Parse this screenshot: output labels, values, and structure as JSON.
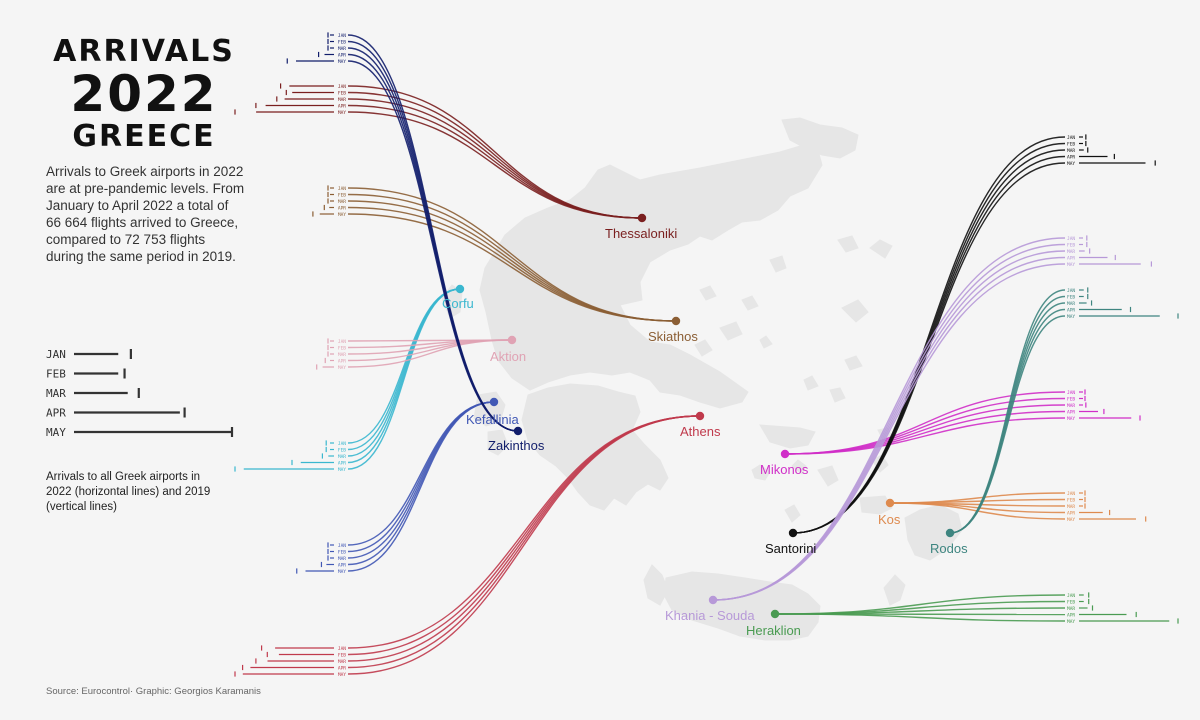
{
  "title": {
    "line1": "ARRIVALS",
    "line2": "2022",
    "line3": "GREECE"
  },
  "intro": "Arrivals to Greek airports in 2022 are at pre-pandemic levels. From January to April 2022 a total of 66 664 flights arrived to Greece, compared to 72 753 flights during the same period in 2019.",
  "legend": {
    "months": [
      "JAN",
      "FEB",
      "MAR",
      "APR",
      "MAY"
    ],
    "values_2022": [
      0.28,
      0.28,
      0.34,
      0.67,
      1.0
    ],
    "values_2019": [
      0.36,
      0.32,
      0.41,
      0.7,
      1.0
    ],
    "note": "Arrivals to all Greek airports in 2022 (horizontal lines) and 2019 (vertical lines)"
  },
  "source": "Source: Eurocontrol· Graphic: Georgios Karamanis",
  "map": {
    "land_color": "#e6e6e6",
    "background": "#f5f5f5"
  },
  "chart_data": {
    "type": "line",
    "series_note": "Relative arrivals per month by airport (share of the airport's largest value); horizontal = 2022, vertical tick = 2019",
    "months": [
      "JAN",
      "FEB",
      "MAR",
      "APR",
      "MAY"
    ],
    "airports": [
      {
        "name": "Thessaloniki",
        "color": "#7a1f1f",
        "values_2022": [
          0.47,
          0.44,
          0.52,
          0.72,
          0.82
        ],
        "values_2019": [
          0.52,
          0.46,
          0.56,
          0.78,
          1.0
        ]
      },
      {
        "name": "Skiathos",
        "color": "#8b5e34",
        "values_2022": [
          0.01,
          0.01,
          0.02,
          0.05,
          0.15
        ],
        "values_2019": [
          0.01,
          0.01,
          0.02,
          0.06,
          0.18
        ]
      },
      {
        "name": "Corfu",
        "color": "#3ab7cf",
        "values_2022": [
          0.03,
          0.04,
          0.06,
          0.35,
          0.95
        ],
        "values_2019": [
          0.04,
          0.04,
          0.08,
          0.4,
          1.0
        ]
      },
      {
        "name": "Aktion",
        "color": "#e0a3b4",
        "values_2022": [
          0.01,
          0.01,
          0.02,
          0.04,
          0.12
        ],
        "values_2019": [
          0.01,
          0.01,
          0.01,
          0.05,
          0.14
        ]
      },
      {
        "name": "Kefallinia",
        "color": "#4158b5",
        "values_2022": [
          0.01,
          0.01,
          0.02,
          0.08,
          0.3
        ],
        "values_2019": [
          0.01,
          0.01,
          0.02,
          0.09,
          0.35
        ]
      },
      {
        "name": "Zakinthos",
        "color": "#111d6b",
        "values_2022": [
          0.01,
          0.01,
          0.02,
          0.1,
          0.4
        ],
        "values_2019": [
          0.01,
          0.01,
          0.02,
          0.12,
          0.45
        ]
      },
      {
        "name": "Athens",
        "color": "#c03a4c",
        "values_2022": [
          0.62,
          0.58,
          0.7,
          0.88,
          0.96
        ],
        "values_2019": [
          0.72,
          0.66,
          0.78,
          0.92,
          1.0
        ]
      },
      {
        "name": "Mikonos",
        "color": "#d02fc8",
        "values_2022": [
          0.02,
          0.02,
          0.03,
          0.2,
          0.55
        ],
        "values_2019": [
          0.02,
          0.02,
          0.03,
          0.22,
          0.6
        ]
      },
      {
        "name": "Santorini",
        "color": "#111111",
        "values_2022": [
          0.03,
          0.03,
          0.05,
          0.3,
          0.7
        ],
        "values_2019": [
          0.03,
          0.03,
          0.05,
          0.33,
          0.76
        ]
      },
      {
        "name": "Kos",
        "color": "#de8a4e",
        "values_2022": [
          0.01,
          0.01,
          0.02,
          0.25,
          0.6
        ],
        "values_2019": [
          0.01,
          0.01,
          0.02,
          0.28,
          0.66
        ]
      },
      {
        "name": "Rodos",
        "color": "#3e8580",
        "values_2022": [
          0.05,
          0.05,
          0.08,
          0.45,
          0.85
        ],
        "values_2019": [
          0.05,
          0.05,
          0.09,
          0.5,
          1.0
        ]
      },
      {
        "name": "Khania - Souda",
        "color": "#b799d8",
        "values_2022": [
          0.04,
          0.04,
          0.06,
          0.3,
          0.65
        ],
        "values_2019": [
          0.04,
          0.04,
          0.07,
          0.34,
          0.72
        ]
      },
      {
        "name": "Heraklion",
        "color": "#4a9b52",
        "values_2022": [
          0.05,
          0.05,
          0.09,
          0.5,
          0.95
        ],
        "values_2019": [
          0.06,
          0.06,
          0.1,
          0.56,
          1.0
        ]
      }
    ]
  }
}
